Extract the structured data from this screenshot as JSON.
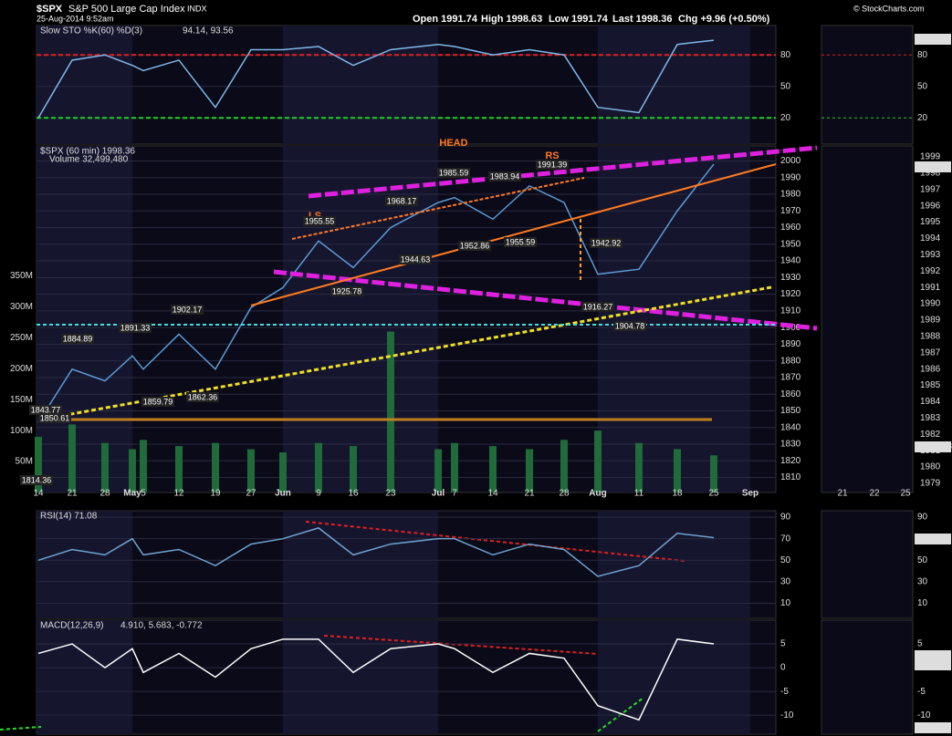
{
  "header": {
    "symbol": "$SPX",
    "name": "S&P 500 Large Cap Index",
    "exchange": "INDX",
    "date": "25-Aug-2014 9:52am",
    "open": "Open 1991.74",
    "high": "High 1998.63",
    "low": "Low 1991.74",
    "last": "Last 1998.36",
    "chg": "Chg +9.96 (+0.50%)",
    "credit": "© StockCharts.com"
  },
  "chart_data": [
    {
      "type": "line",
      "title": "Slow STO %K(60) %D(3)",
      "title_values": "94.14, 93.56",
      "color": "#7fb8ea",
      "values": [
        20,
        75,
        80,
        70,
        65,
        75,
        30,
        85,
        85,
        88,
        70,
        85,
        90,
        88,
        80,
        85,
        80,
        30,
        25,
        90,
        94,
        null
      ],
      "ylim": [
        -5,
        108
      ],
      "yticks": [
        20,
        50,
        80
      ],
      "level_lines": [
        {
          "value": 80,
          "color": "#e02020"
        },
        {
          "value": 20,
          "color": "#20d020"
        }
      ],
      "right_labels": [
        "94.14"
      ]
    },
    {
      "type": "line",
      "title": "$SPX (60 min) 1998.36",
      "volume_label": "Volume 32,499,480",
      "categories": [
        "14",
        "21",
        "28",
        "May",
        "5",
        "12",
        "19",
        "27",
        "Jun",
        "9",
        "16",
        "23",
        "Jul",
        "7",
        "14",
        "21",
        "28",
        "Aug",
        "11",
        "18",
        "25",
        "Sep"
      ],
      "series": [
        {
          "color": "#5b9bd5",
          "values": [
            1843,
            1875,
            1868,
            1883,
            1875,
            1896,
            1875,
            1912,
            1924,
            1952,
            1936,
            1960,
            1975,
            1978,
            1965,
            1985,
            1975,
            1932,
            1935,
            1970,
            1998,
            null
          ]
        },
        {
          "color": "#1f6b3a",
          "axis": "y2",
          "values": [
            90000000,
            110000000,
            80000000,
            70000000,
            85000000,
            75000000,
            80000000,
            70000000,
            65000000,
            80000000,
            75000000,
            260000000,
            70000000,
            80000000,
            75000000,
            70000000,
            85000000,
            100000000,
            80000000,
            70000000,
            60000000,
            null
          ]
        }
      ],
      "ylim": [
        1801,
        2009
      ],
      "yticks": [
        1810,
        1820,
        1830,
        1840,
        1850,
        1860,
        1870,
        1880,
        1890,
        1900,
        1910,
        1920,
        1930,
        1940,
        1950,
        1960,
        1970,
        1980,
        1990,
        2000
      ],
      "y2lim": [
        0,
        560000000
      ],
      "y2ticks": [
        {
          "value": 50000000,
          "label": "50M"
        },
        {
          "value": 100000000,
          "label": "100M"
        },
        {
          "value": 150000000,
          "label": "150M"
        },
        {
          "value": 200000000,
          "label": "200M"
        },
        {
          "value": 250000000,
          "label": "250M"
        },
        {
          "value": 300000000,
          "label": "300M"
        },
        {
          "value": 350000000,
          "label": "350M"
        }
      ],
      "annotations": [
        "HEAD",
        "LS",
        "RS",
        "1991.39",
        "1985.59",
        "1983.94",
        "1968.17",
        "1955.55",
        "1942.92",
        "1952.86",
        "1955.59",
        "1944.63",
        "1925.78",
        "1916.27",
        "1904.78",
        "1902.17",
        "1891.33",
        "1884.89",
        "1859.79",
        "1862.36",
        "1843.77",
        "1850.61",
        "1814.36"
      ],
      "right_labels": [
        "1998.36",
        "32499480"
      ],
      "mini_categories": [
        "21",
        "22",
        "25"
      ],
      "mini_yticks": [
        1979,
        1980,
        1981,
        1982,
        1983,
        1984,
        1985,
        1986,
        1987,
        1988,
        1989,
        1990,
        1991,
        1992,
        1993,
        1994,
        1995,
        1996,
        1997,
        1998,
        1999
      ]
    },
    {
      "type": "line",
      "title": "RSI(14) 71.08",
      "color": "#6fa3d0",
      "values": [
        50,
        60,
        55,
        70,
        55,
        60,
        45,
        65,
        70,
        80,
        55,
        65,
        70,
        70,
        55,
        65,
        60,
        35,
        45,
        75,
        71,
        null
      ],
      "ylim": [
        -4,
        96
      ],
      "yticks": [
        10,
        30,
        50,
        70,
        90
      ],
      "right_labels": [
        "71.08"
      ]
    },
    {
      "type": "line",
      "title": "MACD(12,26,9)",
      "title_values": "4.910, 5.683, -0.772",
      "color": "#ffffff",
      "values": [
        3,
        5,
        0,
        4,
        -1,
        3,
        -2,
        4,
        6,
        6,
        -1,
        4,
        5,
        4,
        -1,
        3,
        2,
        -8,
        -11,
        6,
        5,
        null
      ],
      "ylim": [
        -14,
        10
      ],
      "yticks": [
        -10,
        -5,
        0,
        5
      ],
      "right_labels": [
        "5.683",
        "4.910",
        "-0.772"
      ]
    }
  ]
}
